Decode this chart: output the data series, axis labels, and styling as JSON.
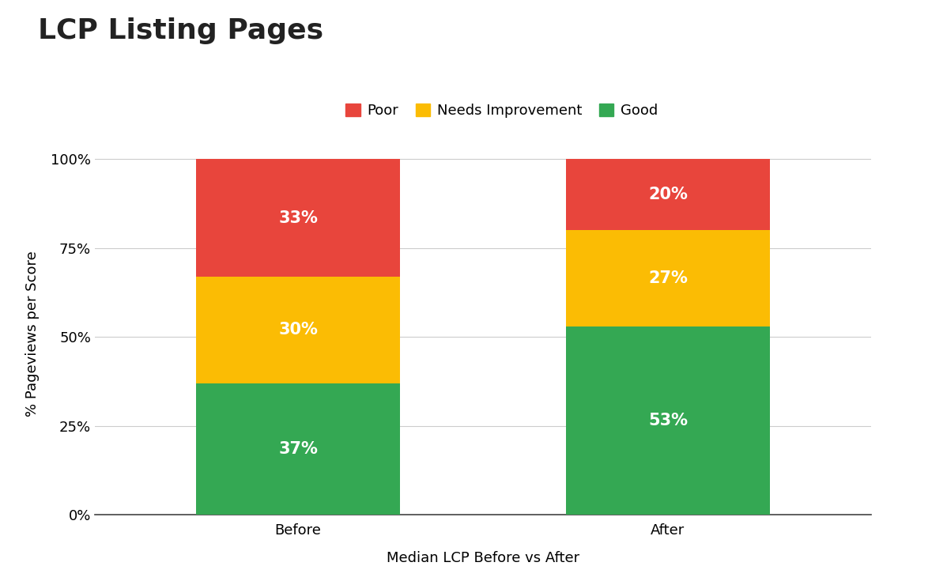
{
  "title": "LCP Listing Pages",
  "xlabel": "Median LCP Before vs After",
  "ylabel": "% Pageviews per Score",
  "categories": [
    "Before",
    "After"
  ],
  "good": [
    37,
    53
  ],
  "needs_improvement": [
    30,
    27
  ],
  "poor": [
    33,
    20
  ],
  "color_good": "#34a853",
  "color_needs_improvement": "#fbbc04",
  "color_poor": "#e8453c",
  "label_good": "Good",
  "label_needs_improvement": "Needs Improvement",
  "label_poor": "Poor",
  "yticks": [
    0,
    25,
    50,
    75,
    100
  ],
  "ytick_labels": [
    "0%",
    "25%",
    "50%",
    "75%",
    "100%"
  ],
  "bar_width": 0.55,
  "label_color": "#ffffff",
  "label_fontsize": 15,
  "title_fontsize": 26,
  "axis_label_fontsize": 13,
  "tick_fontsize": 13,
  "legend_fontsize": 13,
  "background_color": "#ffffff"
}
